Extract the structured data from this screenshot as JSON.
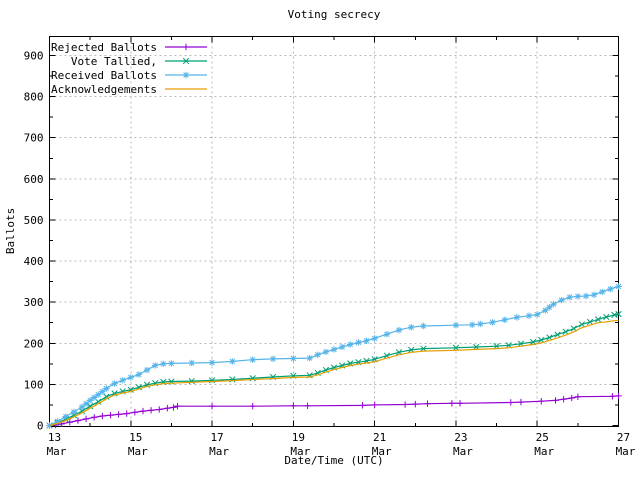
{
  "title": "Voting secrecy",
  "chart_data": {
    "type": "line",
    "title": "Voting secrecy",
    "xlabel": "Date/Time (UTC)",
    "ylabel": "Ballots",
    "ylim": [
      0,
      900
    ],
    "ytick_values": [
      0,
      100,
      200,
      300,
      400,
      500,
      600,
      700,
      800,
      900
    ],
    "xlim_days": [
      13,
      27
    ],
    "xticks": [
      {
        "day": 13,
        "line1": "13",
        "line2": "Mar"
      },
      {
        "day": 15,
        "line1": "15",
        "line2": "Mar"
      },
      {
        "day": 17,
        "line1": "17",
        "line2": "Mar"
      },
      {
        "day": 19,
        "line1": "19",
        "line2": "Mar"
      },
      {
        "day": 21,
        "line1": "21",
        "line2": "Mar"
      },
      {
        "day": 23,
        "line1": "23",
        "line2": "Mar"
      },
      {
        "day": 25,
        "line1": "25",
        "line2": "Mar"
      },
      {
        "day": 27,
        "line1": "27",
        "line2": "Mar"
      }
    ],
    "grid": true,
    "legend_position": "top-left",
    "colors": {
      "rejected": "#9400d3",
      "tallied": "#009e73",
      "received": "#56b4e9",
      "acknowledgements": "#e69f00",
      "grid": "#b9b9b9",
      "axis": "#000000"
    },
    "series": [
      {
        "name": "Rejected Ballots",
        "color": "#9400d3",
        "marker": "plus",
        "points": [
          [
            13.0,
            0
          ],
          [
            13.15,
            1
          ],
          [
            13.3,
            4
          ],
          [
            13.5,
            8
          ],
          [
            13.7,
            12
          ],
          [
            13.9,
            16
          ],
          [
            14.1,
            20
          ],
          [
            14.3,
            23
          ],
          [
            14.5,
            25
          ],
          [
            14.7,
            27
          ],
          [
            14.9,
            29
          ],
          [
            15.1,
            32
          ],
          [
            15.3,
            35
          ],
          [
            15.5,
            37
          ],
          [
            15.7,
            39
          ],
          [
            15.9,
            42
          ],
          [
            16.05,
            44
          ],
          [
            16.15,
            47
          ],
          [
            17.0,
            47
          ],
          [
            18.0,
            47
          ],
          [
            19.0,
            48
          ],
          [
            19.35,
            48
          ],
          [
            20.7,
            49
          ],
          [
            21.0,
            50
          ],
          [
            21.75,
            51
          ],
          [
            22.0,
            52
          ],
          [
            22.3,
            53
          ],
          [
            22.9,
            54
          ],
          [
            23.1,
            54
          ],
          [
            24.35,
            56
          ],
          [
            24.6,
            57
          ],
          [
            25.1,
            59
          ],
          [
            25.45,
            61
          ],
          [
            25.65,
            64
          ],
          [
            25.85,
            67
          ],
          [
            26.0,
            70
          ],
          [
            26.85,
            71
          ],
          [
            27.0,
            72
          ]
        ]
      },
      {
        "name": "Vote Tallied,",
        "color": "#009e73",
        "marker": "cross",
        "points": [
          [
            13.0,
            0
          ],
          [
            13.2,
            7
          ],
          [
            13.4,
            15
          ],
          [
            13.6,
            25
          ],
          [
            13.8,
            35
          ],
          [
            14.0,
            47
          ],
          [
            14.2,
            58
          ],
          [
            14.4,
            70
          ],
          [
            14.6,
            78
          ],
          [
            14.8,
            83
          ],
          [
            15.0,
            87
          ],
          [
            15.2,
            93
          ],
          [
            15.4,
            99
          ],
          [
            15.6,
            103
          ],
          [
            15.8,
            106
          ],
          [
            16.0,
            107
          ],
          [
            16.5,
            108
          ],
          [
            17.0,
            110
          ],
          [
            17.5,
            112
          ],
          [
            18.0,
            115
          ],
          [
            18.5,
            118
          ],
          [
            19.0,
            121
          ],
          [
            19.4,
            122
          ],
          [
            19.6,
            128
          ],
          [
            19.8,
            135
          ],
          [
            20.0,
            141
          ],
          [
            20.2,
            146
          ],
          [
            20.4,
            151
          ],
          [
            20.6,
            154
          ],
          [
            20.8,
            157
          ],
          [
            21.0,
            161
          ],
          [
            21.3,
            170
          ],
          [
            21.6,
            178
          ],
          [
            21.9,
            184
          ],
          [
            22.2,
            187
          ],
          [
            23.0,
            189
          ],
          [
            23.5,
            191
          ],
          [
            24.0,
            193
          ],
          [
            24.3,
            195
          ],
          [
            24.6,
            199
          ],
          [
            24.9,
            203
          ],
          [
            25.1,
            208
          ],
          [
            25.3,
            214
          ],
          [
            25.5,
            221
          ],
          [
            25.7,
            228
          ],
          [
            25.9,
            236
          ],
          [
            26.1,
            246
          ],
          [
            26.3,
            252
          ],
          [
            26.5,
            258
          ],
          [
            26.7,
            264
          ],
          [
            26.9,
            269
          ],
          [
            27.0,
            271
          ]
        ]
      },
      {
        "name": "Received Ballots",
        "color": "#56b4e9",
        "marker": "star",
        "points": [
          [
            13.0,
            0
          ],
          [
            13.2,
            10
          ],
          [
            13.4,
            22
          ],
          [
            13.6,
            33
          ],
          [
            13.8,
            45
          ],
          [
            14.0,
            61
          ],
          [
            14.2,
            75
          ],
          [
            14.4,
            90
          ],
          [
            14.6,
            102
          ],
          [
            14.8,
            110
          ],
          [
            15.0,
            117
          ],
          [
            15.2,
            124
          ],
          [
            15.4,
            135
          ],
          [
            15.6,
            146
          ],
          [
            15.8,
            150
          ],
          [
            16.0,
            151
          ],
          [
            16.5,
            152
          ],
          [
            17.0,
            153
          ],
          [
            17.5,
            156
          ],
          [
            18.0,
            160
          ],
          [
            18.5,
            162
          ],
          [
            19.0,
            163
          ],
          [
            19.4,
            164
          ],
          [
            19.6,
            172
          ],
          [
            19.8,
            179
          ],
          [
            20.0,
            185
          ],
          [
            20.2,
            191
          ],
          [
            20.4,
            197
          ],
          [
            20.6,
            202
          ],
          [
            20.8,
            206
          ],
          [
            21.0,
            212
          ],
          [
            21.3,
            222
          ],
          [
            21.6,
            232
          ],
          [
            21.9,
            239
          ],
          [
            22.2,
            242
          ],
          [
            23.0,
            244
          ],
          [
            23.4,
            245
          ],
          [
            23.6,
            247
          ],
          [
            23.9,
            251
          ],
          [
            24.2,
            257
          ],
          [
            24.5,
            263
          ],
          [
            24.8,
            267
          ],
          [
            25.0,
            270
          ],
          [
            25.2,
            280
          ],
          [
            25.4,
            295
          ],
          [
            25.6,
            305
          ],
          [
            25.8,
            312
          ],
          [
            26.0,
            314
          ],
          [
            26.2,
            315
          ],
          [
            26.4,
            318
          ],
          [
            26.6,
            325
          ],
          [
            26.8,
            332
          ],
          [
            27.0,
            338
          ]
        ]
      },
      {
        "name": "Acknowledgements",
        "color": "#e69f00",
        "marker": "none",
        "points": [
          [
            13.0,
            0
          ],
          [
            13.2,
            5
          ],
          [
            13.4,
            12
          ],
          [
            13.6,
            21
          ],
          [
            13.8,
            31
          ],
          [
            14.0,
            42
          ],
          [
            14.2,
            53
          ],
          [
            14.4,
            65
          ],
          [
            14.6,
            74
          ],
          [
            14.8,
            79
          ],
          [
            15.0,
            83
          ],
          [
            15.2,
            89
          ],
          [
            15.4,
            95
          ],
          [
            15.6,
            99
          ],
          [
            15.8,
            102
          ],
          [
            16.0,
            103
          ],
          [
            16.5,
            105
          ],
          [
            17.0,
            107
          ],
          [
            17.5,
            109
          ],
          [
            18.0,
            112
          ],
          [
            18.5,
            114
          ],
          [
            19.0,
            117
          ],
          [
            19.4,
            118
          ],
          [
            19.6,
            123
          ],
          [
            19.8,
            130
          ],
          [
            20.0,
            136
          ],
          [
            20.2,
            141
          ],
          [
            20.4,
            146
          ],
          [
            20.6,
            149
          ],
          [
            20.8,
            152
          ],
          [
            21.0,
            155
          ],
          [
            21.3,
            164
          ],
          [
            21.6,
            172
          ],
          [
            21.9,
            178
          ],
          [
            22.2,
            181
          ],
          [
            23.0,
            183
          ],
          [
            23.5,
            185
          ],
          [
            24.0,
            187
          ],
          [
            24.3,
            189
          ],
          [
            24.6,
            193
          ],
          [
            24.9,
            197
          ],
          [
            25.1,
            201
          ],
          [
            25.3,
            207
          ],
          [
            25.5,
            213
          ],
          [
            25.7,
            220
          ],
          [
            25.9,
            228
          ],
          [
            26.1,
            238
          ],
          [
            26.3,
            244
          ],
          [
            26.5,
            250
          ],
          [
            26.7,
            252
          ],
          [
            26.9,
            255
          ],
          [
            27.0,
            256
          ]
        ]
      }
    ]
  }
}
